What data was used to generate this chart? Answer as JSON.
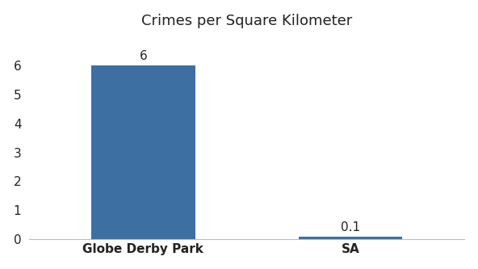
{
  "categories": [
    "Globe Derby Park",
    "SA"
  ],
  "values": [
    6,
    0.1
  ],
  "bar_colors": [
    "#3d6fa3",
    "#3d6fa3"
  ],
  "bar_labels": [
    "6",
    "0.1"
  ],
  "title": "Crimes per Square Kilometer",
  "title_fontsize": 13,
  "ylim": [
    0,
    7.0
  ],
  "yticks": [
    0,
    1,
    2,
    3,
    4,
    5,
    6
  ],
  "background_color": "#ffffff",
  "bar_width": 0.5,
  "label_fontsize": 11,
  "tick_fontsize": 11,
  "x_positions": [
    0,
    1
  ]
}
